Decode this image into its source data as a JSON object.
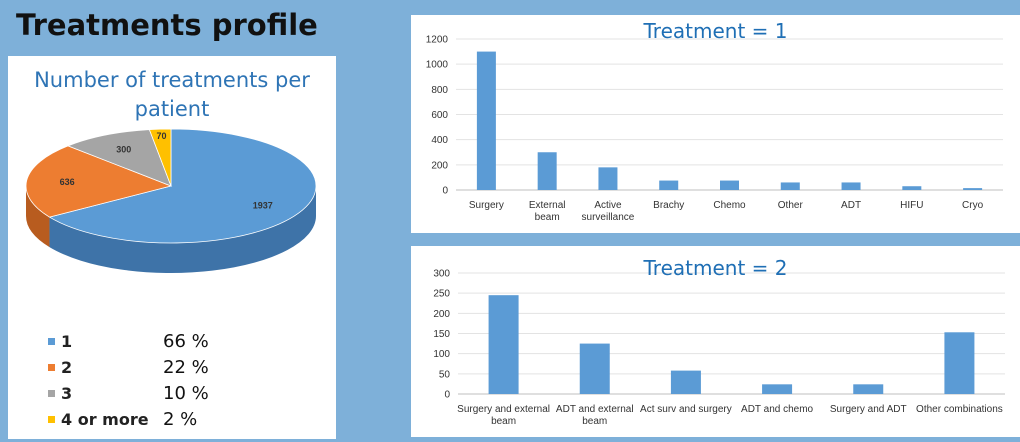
{
  "page_title": "Treatments profile",
  "pie": {
    "title": "Number of treatments per patient",
    "slices": [
      {
        "label": "1",
        "value": 1937,
        "pct": "66 %",
        "color": "#5b9bd5",
        "side": "#3e73a8"
      },
      {
        "label": "2",
        "value": 636,
        "pct": "22 %",
        "color": "#ed7d31",
        "side": "#b85c1f"
      },
      {
        "label": "3",
        "value": 300,
        "pct": "10 %",
        "color": "#a5a5a5",
        "side": "#7a7a7a"
      },
      {
        "label": "4 or more",
        "value": 70,
        "pct": "2 %",
        "color": "#ffc000",
        "side": "#c79500"
      }
    ]
  },
  "chart_data": [
    {
      "type": "bar",
      "title": "Treatment = 1",
      "categories": [
        "Surgery",
        "External beam",
        "Active surveillance",
        "Brachy",
        "Chemo",
        "Other",
        "ADT",
        "HIFU",
        "Cryo"
      ],
      "values": [
        1100,
        300,
        180,
        75,
        75,
        60,
        60,
        30,
        15
      ],
      "ylim": [
        0,
        1200
      ],
      "yticks": [
        "0",
        "200",
        "400",
        "600",
        "800",
        "1000",
        "1200"
      ],
      "color": "#5b9bd5",
      "grid": true
    },
    {
      "type": "bar",
      "title": "Treatment = 2",
      "categories": [
        "Surgery and external beam",
        "ADT and external beam",
        "Act surv and surgery",
        "ADT and chemo",
        "Surgery and ADT",
        "Other combinations"
      ],
      "values": [
        245,
        125,
        58,
        24,
        24,
        153
      ],
      "ylim": [
        0,
        300
      ],
      "yticks": [
        "0",
        "50",
        "100",
        "150",
        "200",
        "250",
        "300"
      ],
      "color": "#5b9bd5",
      "grid": true
    }
  ]
}
